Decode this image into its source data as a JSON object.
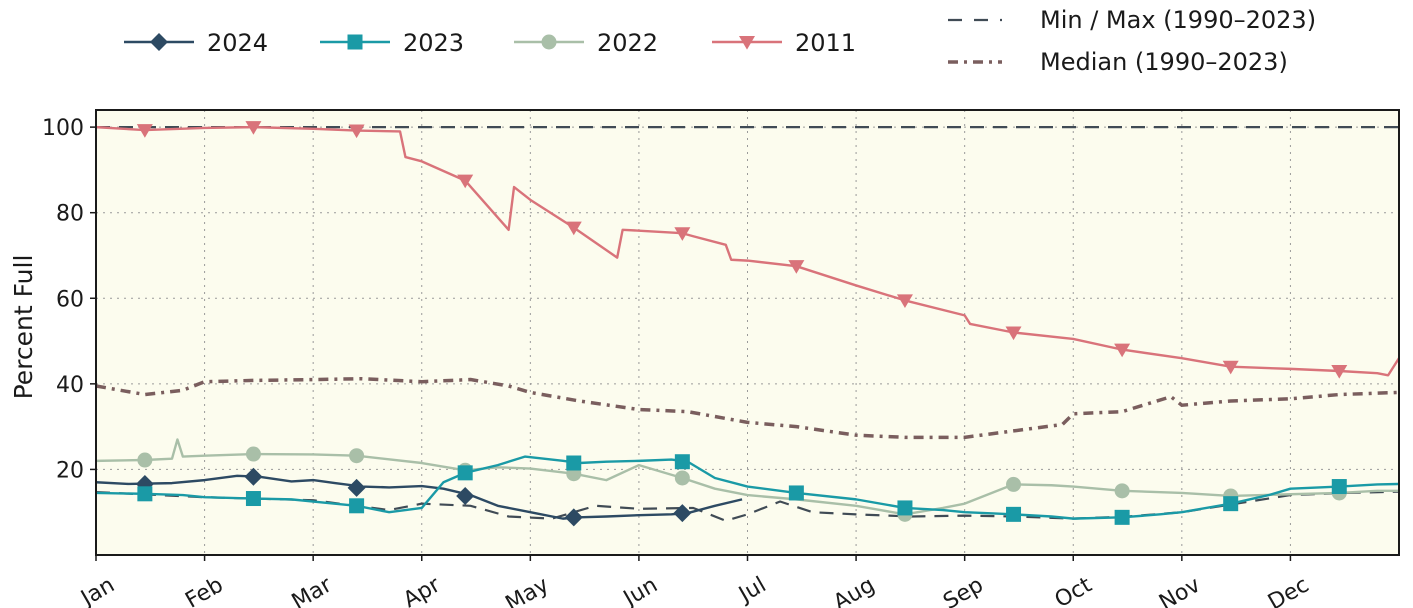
{
  "chart_data": {
    "type": "line",
    "xlabel": "",
    "ylabel": "Percent Full",
    "xlim": [
      0,
      12
    ],
    "ylim": [
      0,
      104
    ],
    "y_ticks": [
      20,
      40,
      60,
      80,
      100
    ],
    "x_tick_labels": [
      "Jan",
      "Feb",
      "Mar",
      "Apr",
      "May",
      "Jun",
      "Jul",
      "Aug",
      "Sep",
      "Oct",
      "Nov",
      "Dec"
    ],
    "grid": true,
    "legend_placement": "top",
    "plot_background": "#fcfcee",
    "series": [
      {
        "name": "2024",
        "color": "#2d4a63",
        "marker": "diamond",
        "x": [
          0,
          0.3,
          0.7,
          1.0,
          1.3,
          1.5,
          1.8,
          2.0,
          2.2,
          2.45,
          2.7,
          3.0,
          3.2,
          3.45,
          3.7,
          4.0,
          4.3,
          4.45,
          4.7,
          5.0,
          5.3,
          5.45,
          5.7,
          5.95
        ],
        "y": [
          17,
          16.6,
          16.8,
          17.5,
          18.5,
          18.3,
          17.2,
          17.5,
          16.8,
          16.0,
          15.8,
          16.1,
          15.5,
          14.0,
          11.5,
          10.0,
          8.5,
          8.8,
          9.0,
          9.3,
          9.5,
          9.8,
          11.5,
          13.0
        ],
        "markers_x": [
          0.45,
          1.45,
          2.4,
          3.4,
          4.4,
          5.4
        ],
        "markers_y": [
          16.6,
          18.3,
          15.7,
          13.8,
          8.8,
          9.8
        ]
      },
      {
        "name": "2023",
        "color": "#1a9aa6",
        "marker": "square",
        "x": [
          0,
          0.45,
          0.8,
          1.0,
          1.45,
          1.8,
          2.0,
          2.4,
          2.7,
          3.0,
          3.2,
          3.4,
          3.7,
          3.95,
          4.3,
          4.45,
          4.7,
          5.0,
          5.3,
          5.45,
          5.7,
          6.0,
          6.45,
          7.0,
          7.45,
          7.8,
          8.0,
          8.45,
          8.8,
          9.0,
          9.45,
          9.8,
          10.0,
          10.45,
          10.8,
          11.0,
          11.45,
          11.8,
          12.0
        ],
        "y": [
          14.5,
          14.3,
          14.0,
          13.5,
          13.2,
          13.0,
          12.5,
          11.5,
          10.0,
          11.0,
          17.0,
          19.2,
          21.0,
          23.0,
          22.0,
          21.5,
          21.8,
          22.0,
          22.3,
          21.8,
          18.0,
          16.0,
          14.5,
          13.0,
          11.0,
          10.5,
          10.0,
          9.5,
          9.0,
          8.5,
          8.8,
          9.5,
          10.0,
          12.0,
          14.0,
          15.5,
          16.0,
          16.5,
          16.6
        ],
        "markers_x": [
          0.45,
          1.45,
          2.4,
          3.4,
          4.4,
          5.4,
          6.45,
          7.45,
          8.45,
          9.45,
          10.45,
          11.45
        ],
        "markers_y": [
          14.3,
          13.2,
          11.5,
          19.2,
          21.5,
          21.8,
          14.5,
          11.0,
          9.5,
          8.8,
          12.0,
          16.0
        ]
      },
      {
        "name": "2022",
        "color": "#a9bfa8",
        "marker": "circle",
        "x": [
          0,
          0.45,
          0.7,
          0.75,
          0.8,
          1.0,
          1.45,
          2.0,
          2.4,
          3.0,
          3.4,
          3.7,
          4.0,
          4.4,
          4.7,
          5.0,
          5.4,
          5.7,
          6.0,
          6.45,
          7.0,
          7.45,
          7.8,
          8.0,
          8.45,
          8.8,
          9.0,
          9.45,
          10.0,
          10.45,
          11.0,
          11.45,
          11.8,
          12.0
        ],
        "y": [
          22,
          22.2,
          22.5,
          27.0,
          23.0,
          23.2,
          23.6,
          23.5,
          23.2,
          21.5,
          19.8,
          20.5,
          20.2,
          19.0,
          17.5,
          21.0,
          18.0,
          15.5,
          14.0,
          13.0,
          11.5,
          9.5,
          11.0,
          12.0,
          16.5,
          16.3,
          16.0,
          15.0,
          14.5,
          13.8,
          14.2,
          14.5,
          15.0,
          15.0
        ],
        "markers_x": [
          0.45,
          1.45,
          2.4,
          3.4,
          4.4,
          5.4,
          7.45,
          8.45,
          9.45,
          10.45,
          11.45
        ],
        "markers_y": [
          22.2,
          23.6,
          23.2,
          19.8,
          19.0,
          18.0,
          9.5,
          16.5,
          15.0,
          13.8,
          14.5
        ]
      },
      {
        "name": "2011",
        "color": "#d9737a",
        "marker": "triangle-down",
        "x": [
          0,
          0.45,
          1.0,
          1.45,
          2.0,
          2.4,
          2.8,
          2.85,
          3.0,
          3.4,
          3.8,
          3.85,
          4.0,
          4.4,
          4.8,
          4.85,
          5.0,
          5.4,
          5.5,
          5.8,
          5.85,
          6.0,
          6.45,
          7.0,
          7.45,
          8.0,
          8.05,
          8.45,
          9.0,
          9.45,
          10.0,
          10.45,
          11.0,
          11.45,
          11.8,
          11.9,
          12.0
        ],
        "y": [
          100,
          99.3,
          99.8,
          100,
          99.6,
          99.2,
          99.0,
          93.0,
          92.0,
          87.5,
          76.0,
          86.0,
          83.0,
          76.5,
          69.5,
          76.0,
          75.8,
          75.2,
          74.5,
          72.5,
          69.0,
          68.8,
          67.5,
          63.0,
          59.5,
          56.0,
          54.0,
          52.0,
          50.5,
          48.0,
          46.0,
          44.0,
          43.5,
          43.0,
          42.5,
          42.0,
          46.0
        ],
        "markers_x": [
          0.45,
          1.45,
          2.4,
          3.4,
          4.4,
          5.4,
          6.45,
          7.45,
          8.45,
          9.45,
          10.45,
          11.45
        ],
        "markers_y": [
          99.3,
          100,
          99.2,
          87.5,
          76.5,
          75.2,
          67.5,
          59.5,
          52.0,
          48.0,
          44.0,
          43.0
        ]
      }
    ],
    "reference_lines": [
      {
        "name": "Min / Max (1990–2023)",
        "color": "#404b55",
        "style": "dashed",
        "max_y": 100,
        "min_x": [
          0,
          1.0,
          2.0,
          2.7,
          3.0,
          3.45,
          3.8,
          4.2,
          4.6,
          5.0,
          5.5,
          5.8,
          6.0,
          6.3,
          6.6,
          7.0,
          7.5,
          8.0,
          8.45,
          9.0,
          9.5,
          10.0,
          10.5,
          11.0,
          11.5,
          12.0
        ],
        "min_y": [
          14.7,
          13.5,
          12.8,
          10.5,
          12.0,
          11.5,
          9.0,
          8.5,
          11.5,
          10.8,
          11.0,
          8.0,
          9.5,
          12.5,
          10.0,
          9.5,
          9.0,
          9.2,
          9.0,
          8.5,
          9.0,
          10.0,
          12.0,
          14.0,
          14.5,
          14.8
        ]
      },
      {
        "name": "Median (1990–2023)",
        "color": "#7a5e5e",
        "style": "dashdot",
        "x": [
          0,
          0.45,
          0.8,
          1.0,
          1.45,
          2.0,
          2.45,
          3.0,
          3.45,
          3.8,
          4.0,
          4.45,
          5.0,
          5.45,
          6.0,
          6.45,
          7.0,
          7.45,
          8.0,
          8.45,
          8.9,
          9.0,
          9.45,
          9.9,
          10.0,
          10.45,
          11.0,
          11.45,
          12.0
        ],
        "y": [
          39.5,
          37.5,
          38.5,
          40.5,
          40.8,
          41.0,
          41.2,
          40.5,
          41.0,
          39.5,
          38.0,
          36.0,
          34.0,
          33.5,
          31.0,
          30.0,
          28.0,
          27.5,
          27.5,
          29.0,
          30.5,
          33.0,
          33.5,
          37.0,
          35.0,
          36.0,
          36.5,
          37.5,
          38.0
        ]
      }
    ]
  }
}
